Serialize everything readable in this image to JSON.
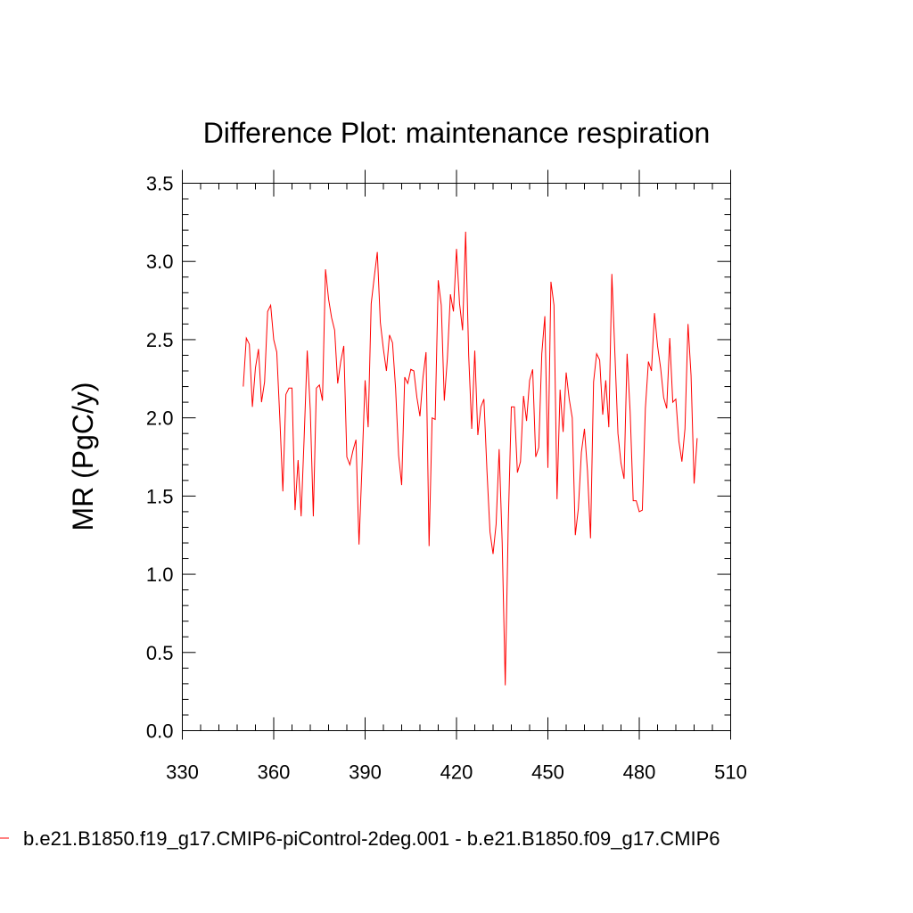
{
  "chart_data": {
    "type": "line",
    "title": "Difference Plot: maintenance respiration",
    "xlabel": "",
    "ylabel": "MR  (PgC/y)",
    "xlim": [
      330,
      510
    ],
    "ylim": [
      0.0,
      3.5
    ],
    "x_ticks": [
      330,
      360,
      390,
      420,
      450,
      480,
      510
    ],
    "x_tick_labels": [
      "330",
      "360",
      "390",
      "420",
      "450",
      "480",
      "510"
    ],
    "y_ticks": [
      0.0,
      0.5,
      1.0,
      1.5,
      2.0,
      2.5,
      3.0,
      3.5
    ],
    "y_tick_labels": [
      "0.0",
      "0.5",
      "1.0",
      "1.5",
      "2.0",
      "2.5",
      "3.0",
      "3.5"
    ],
    "grid": false,
    "legend": {
      "position": "bottom",
      "entries": [
        "b.e21.B1850.f19_g17.CMIP6-piControl-2deg.001 - b.e21.B1850.f09_g17.CMIP6"
      ]
    },
    "series": [
      {
        "name": "b.e21.B1850.f19_g17.CMIP6-piControl-2deg.001 - b.e21.B1850.f09_g17.CMIP6",
        "color": "#ff0000",
        "x": [
          350,
          351,
          352,
          353,
          354,
          355,
          356,
          357,
          358,
          359,
          360,
          361,
          362,
          363,
          364,
          365,
          366,
          367,
          368,
          369,
          370,
          371,
          372,
          373,
          374,
          375,
          376,
          377,
          378,
          379,
          380,
          381,
          382,
          383,
          384,
          385,
          386,
          387,
          388,
          389,
          390,
          391,
          392,
          393,
          394,
          395,
          396,
          397,
          398,
          399,
          400,
          401,
          402,
          403,
          404,
          405,
          406,
          407,
          408,
          409,
          410,
          411,
          412,
          413,
          414,
          415,
          416,
          417,
          418,
          419,
          420,
          421,
          422,
          423,
          424,
          425,
          426,
          427,
          428,
          429,
          430,
          431,
          432,
          433,
          434,
          435,
          436,
          437,
          438,
          439,
          440,
          441,
          442,
          443,
          444,
          445,
          446,
          447,
          448,
          449,
          450,
          451,
          452,
          453,
          454,
          455,
          456,
          457,
          458,
          459,
          460,
          461,
          462,
          463,
          464,
          465,
          466,
          467,
          468,
          469,
          470,
          471,
          472,
          473,
          474,
          475,
          476,
          477,
          478,
          479,
          480,
          481,
          482,
          483,
          484,
          485,
          486,
          487,
          488,
          489,
          490,
          491,
          492,
          493,
          494,
          495,
          496,
          497,
          498,
          499
        ],
        "values": [
          2.2,
          2.51,
          2.47,
          2.07,
          2.32,
          2.44,
          2.1,
          2.23,
          2.68,
          2.72,
          2.5,
          2.42,
          2.0,
          1.53,
          2.15,
          2.19,
          2.19,
          1.41,
          1.73,
          1.37,
          1.88,
          2.43,
          2.05,
          1.37,
          2.19,
          2.21,
          2.11,
          2.95,
          2.76,
          2.64,
          2.56,
          2.22,
          2.36,
          2.46,
          1.75,
          1.7,
          1.79,
          1.86,
          1.19,
          1.7,
          2.24,
          1.94,
          2.73,
          2.9,
          3.06,
          2.61,
          2.44,
          2.3,
          2.53,
          2.48,
          2.19,
          1.76,
          1.57,
          2.26,
          2.22,
          2.31,
          2.3,
          2.13,
          2.01,
          2.26,
          2.42,
          1.18,
          2.0,
          1.99,
          2.88,
          2.72,
          2.11,
          2.38,
          2.79,
          2.68,
          3.08,
          2.73,
          2.56,
          3.19,
          2.4,
          1.93,
          2.43,
          1.89,
          2.07,
          2.12,
          1.66,
          1.27,
          1.13,
          1.32,
          1.8,
          1.2,
          0.29,
          1.33,
          2.07,
          2.07,
          1.65,
          1.72,
          2.14,
          1.98,
          2.24,
          2.31,
          1.75,
          1.81,
          2.41,
          2.65,
          1.68,
          2.87,
          2.72,
          1.48,
          2.18,
          1.91,
          2.29,
          2.12,
          2.0,
          1.25,
          1.42,
          1.78,
          1.93,
          1.66,
          1.23,
          2.23,
          2.41,
          2.37,
          2.02,
          2.24,
          1.94,
          2.92,
          2.41,
          1.9,
          1.71,
          1.61,
          2.41,
          2.04,
          1.47,
          1.47,
          1.4,
          1.41,
          2.06,
          2.36,
          2.3,
          2.67,
          2.46,
          2.32,
          2.13,
          2.06,
          2.51,
          2.1,
          2.12,
          1.85,
          1.72,
          1.93,
          2.6,
          2.27,
          1.58,
          1.87
        ]
      }
    ]
  }
}
